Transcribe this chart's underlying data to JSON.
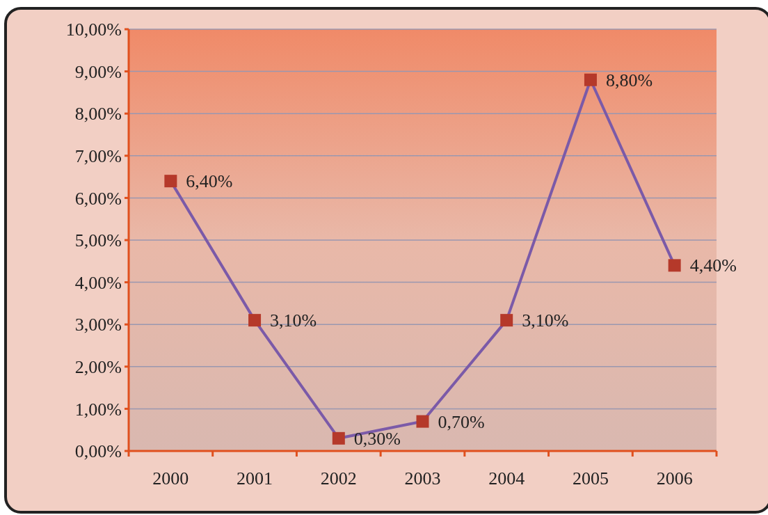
{
  "chart_data": {
    "type": "line",
    "categories": [
      "2000",
      "2001",
      "2002",
      "2003",
      "2004",
      "2005",
      "2006"
    ],
    "series": [
      {
        "color": "#7b5aa8",
        "values": [
          6.4,
          3.1,
          0.3,
          0.7,
          3.1,
          8.8,
          4.4
        ],
        "value_labels": [
          "6,40%",
          "3,10%",
          "0,30%",
          "0,70%",
          "3,10%",
          "8,80%",
          "4,40%"
        ]
      }
    ],
    "marker": "square",
    "ylim": [
      0,
      10
    ],
    "yticks": [
      {
        "value": 0,
        "label": "0,00%"
      },
      {
        "value": 1,
        "label": "1,00%"
      },
      {
        "value": 2,
        "label": "2,00%"
      },
      {
        "value": 3,
        "label": "3,00%"
      },
      {
        "value": 4,
        "label": "4,00%"
      },
      {
        "value": 5,
        "label": "5,00%"
      },
      {
        "value": 6,
        "label": "6,00%"
      },
      {
        "value": 7,
        "label": "7,00%"
      },
      {
        "value": 8,
        "label": "8,00%"
      },
      {
        "value": 9,
        "label": "9,00%"
      },
      {
        "value": 10,
        "label": "10,00%"
      }
    ],
    "grid": "y"
  }
}
